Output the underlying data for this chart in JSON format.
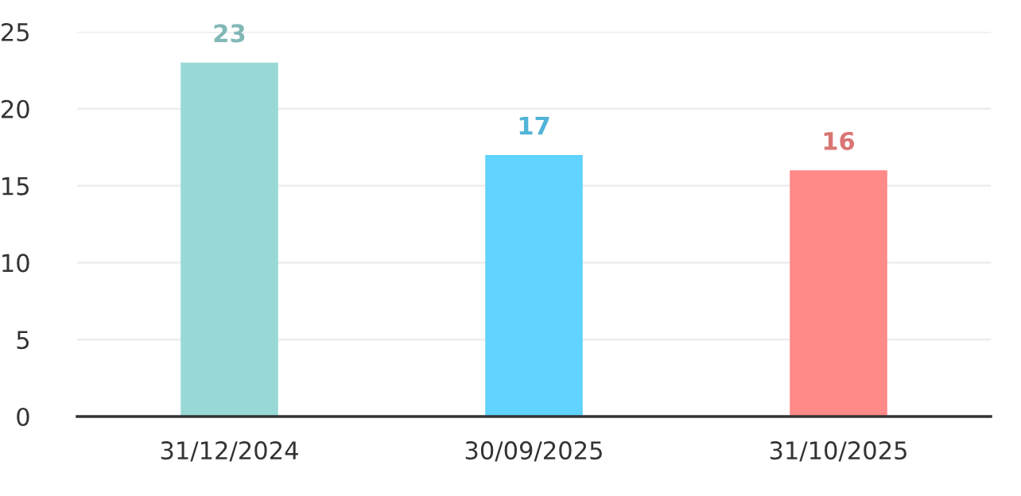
{
  "chart_data": {
    "type": "bar",
    "categories": [
      "31/12/2024",
      "30/09/2025",
      "31/10/2025"
    ],
    "values": [
      23,
      17,
      16
    ],
    "colors": [
      "#98d9d6",
      "#60d3fe",
      "#ff8a87"
    ],
    "ylim": [
      0,
      25
    ],
    "yticks": [
      0,
      5,
      10,
      15,
      20,
      25
    ],
    "grid": "y",
    "data_labels": true
  }
}
